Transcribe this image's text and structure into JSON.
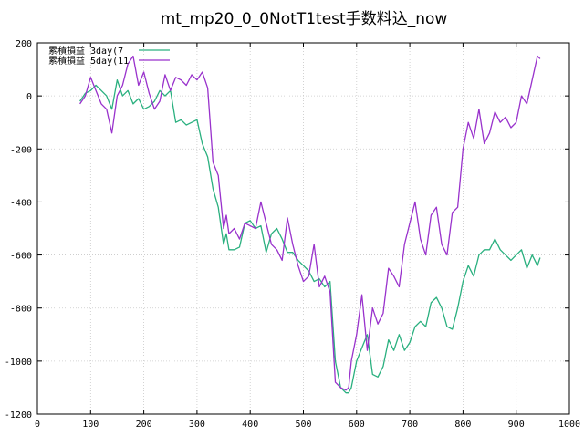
{
  "chart_data": {
    "type": "line",
    "title": "mt_mp20_0_0NotT1test手数料込_now",
    "xlabel": "",
    "ylabel": "",
    "xlim": [
      0,
      1000
    ],
    "ylim": [
      -1200,
      200
    ],
    "xticks": [
      0,
      100,
      200,
      300,
      400,
      500,
      600,
      700,
      800,
      900,
      1000
    ],
    "yticks": [
      -1200,
      -1000,
      -800,
      -600,
      -400,
      -200,
      0,
      200
    ],
    "grid": true,
    "legend_position": "top-left",
    "series": [
      {
        "name": "累積損益 3day(7",
        "color": "#2ab07f",
        "x": [
          80,
          90,
          100,
          110,
          120,
          130,
          140,
          150,
          160,
          170,
          180,
          190,
          200,
          210,
          220,
          230,
          240,
          250,
          260,
          270,
          280,
          290,
          300,
          310,
          320,
          330,
          340,
          350,
          355,
          360,
          370,
          380,
          390,
          400,
          410,
          420,
          430,
          440,
          450,
          460,
          470,
          480,
          490,
          500,
          510,
          520,
          530,
          540,
          550,
          560,
          570,
          580,
          585,
          590,
          600,
          610,
          620,
          630,
          640,
          650,
          660,
          670,
          680,
          690,
          700,
          710,
          720,
          730,
          740,
          750,
          760,
          770,
          780,
          790,
          800,
          810,
          820,
          830,
          840,
          850,
          860,
          870,
          880,
          890,
          900,
          910,
          920,
          930,
          940,
          945
        ],
        "y": [
          -20,
          10,
          20,
          40,
          20,
          0,
          -50,
          60,
          0,
          20,
          -30,
          -10,
          -50,
          -40,
          -20,
          20,
          0,
          20,
          -100,
          -90,
          -110,
          -100,
          -90,
          -180,
          -230,
          -350,
          -420,
          -560,
          -520,
          -580,
          -580,
          -570,
          -480,
          -470,
          -500,
          -490,
          -590,
          -520,
          -500,
          -540,
          -590,
          -590,
          -620,
          -640,
          -660,
          -700,
          -690,
          -720,
          -700,
          -1000,
          -1100,
          -1120,
          -1120,
          -1100,
          -1000,
          -950,
          -900,
          -1050,
          -1060,
          -1020,
          -920,
          -960,
          -900,
          -960,
          -930,
          -870,
          -850,
          -870,
          -780,
          -760,
          -800,
          -870,
          -880,
          -800,
          -700,
          -640,
          -680,
          -600,
          -580,
          -580,
          -540,
          -580,
          -600,
          -620,
          -600,
          -580,
          -650,
          -600,
          -640,
          -610
        ]
      },
      {
        "name": "累積損益 5day(11",
        "color": "#9932cc",
        "x": [
          80,
          90,
          100,
          110,
          120,
          130,
          140,
          150,
          160,
          170,
          180,
          190,
          200,
          210,
          220,
          230,
          240,
          250,
          260,
          270,
          280,
          290,
          300,
          310,
          320,
          330,
          340,
          350,
          355,
          360,
          370,
          380,
          390,
          400,
          410,
          420,
          430,
          440,
          450,
          460,
          470,
          480,
          490,
          500,
          510,
          520,
          530,
          540,
          550,
          560,
          570,
          580,
          585,
          590,
          600,
          610,
          620,
          630,
          640,
          650,
          660,
          670,
          680,
          690,
          700,
          710,
          720,
          730,
          740,
          750,
          760,
          770,
          780,
          790,
          800,
          810,
          820,
          830,
          840,
          850,
          860,
          870,
          880,
          890,
          900,
          910,
          920,
          930,
          940,
          945
        ],
        "y": [
          -30,
          0,
          70,
          20,
          -30,
          -50,
          -140,
          0,
          40,
          120,
          150,
          40,
          90,
          10,
          -50,
          -20,
          80,
          20,
          70,
          60,
          40,
          80,
          60,
          90,
          30,
          -250,
          -300,
          -500,
          -450,
          -520,
          -500,
          -540,
          -480,
          -490,
          -500,
          -400,
          -480,
          -560,
          -580,
          -620,
          -460,
          -560,
          -640,
          -700,
          -680,
          -560,
          -720,
          -680,
          -740,
          -1080,
          -1100,
          -1110,
          -1100,
          -1000,
          -900,
          -750,
          -960,
          -800,
          -860,
          -820,
          -650,
          -680,
          -720,
          -560,
          -480,
          -400,
          -540,
          -600,
          -450,
          -420,
          -560,
          -600,
          -440,
          -420,
          -200,
          -100,
          -160,
          -50,
          -180,
          -140,
          -60,
          -100,
          -80,
          -120,
          -100,
          0,
          -30,
          60,
          150,
          140
        ]
      }
    ]
  }
}
